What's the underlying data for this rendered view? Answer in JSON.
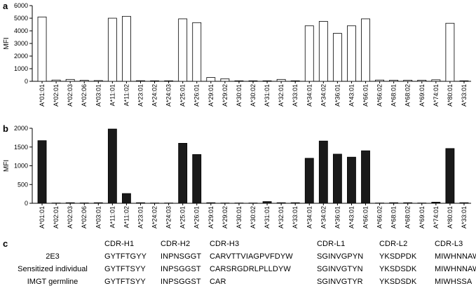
{
  "panels": {
    "a": {
      "label": "a"
    },
    "b": {
      "label": "b"
    },
    "c": {
      "label": "c"
    }
  },
  "chart_data": [
    {
      "type": "bar",
      "panel": "a",
      "ylabel": "MFI",
      "ylim": [
        0,
        6000
      ],
      "yticks": [
        0,
        1000,
        2000,
        3000,
        4000,
        5000,
        6000
      ],
      "fill": "#ffffff",
      "stroke": "#000000",
      "categories": [
        "A*01:01",
        "A*02:01",
        "A*02:03",
        "A*02:06",
        "A*03:01",
        "A*11:01",
        "A*11:02",
        "A*23:01",
        "A*24:02",
        "A*24:03",
        "A*25:01",
        "A*26:01",
        "A*29:01",
        "A*29:02",
        "A*30:01",
        "A*30:02",
        "A*31:01",
        "A*32:01",
        "A*33:01",
        "A*34:01",
        "A*34:02",
        "A*36:01",
        "A*43:01",
        "A*66:01",
        "A*66:02",
        "A*68:01",
        "A*68:02",
        "A*69:01",
        "A*74:01",
        "A*80:01",
        "A*33:01"
      ],
      "values": [
        5100,
        100,
        150,
        80,
        60,
        5000,
        5150,
        50,
        40,
        40,
        4950,
        4650,
        300,
        200,
        40,
        40,
        40,
        150,
        40,
        4400,
        4750,
        3800,
        4400,
        4950,
        100,
        90,
        90,
        90,
        120,
        4600,
        40
      ]
    },
    {
      "type": "bar",
      "panel": "b",
      "ylabel": "MFI",
      "ylim": [
        0,
        2000
      ],
      "yticks": [
        0,
        500,
        1000,
        1500,
        2000
      ],
      "fill": "#1a1a1a",
      "stroke": "#000000",
      "categories": [
        "A*01:01",
        "A*02:01",
        "A*02:03",
        "A*02:06",
        "A*03:01",
        "A*11:01",
        "A*11:02",
        "A*23:01",
        "A*24:02",
        "A*24:03",
        "A*25:01",
        "A*26:01",
        "A*29:01",
        "A*29:02",
        "A*30:01",
        "A*30:02",
        "A*31:01",
        "A*32:01",
        "A*33:01",
        "A*34:01",
        "A*34:02",
        "A*36:01",
        "A*43:01",
        "A*66:01",
        "A*66:02",
        "A*68:01",
        "A*68:02",
        "A*69:01",
        "A*74:01",
        "A*80:01",
        "A*33:01"
      ],
      "values": [
        1670,
        8,
        15,
        10,
        15,
        1980,
        260,
        15,
        8,
        8,
        1600,
        1300,
        15,
        8,
        8,
        8,
        45,
        15,
        15,
        1200,
        1660,
        1310,
        1230,
        1400,
        8,
        15,
        15,
        8,
        30,
        1460,
        15
      ]
    }
  ],
  "table": {
    "headers": [
      "CDR-H1",
      "CDR-H2",
      "CDR-H3",
      "CDR-L1",
      "CDR-L2",
      "CDR-L3"
    ],
    "rows": [
      {
        "label": "2E3",
        "cells": [
          "GYTFTGYY",
          "INPNSGGT",
          "CARVTTVIAGPVFDYW",
          "SGINVGPYN",
          "YKSDPDK",
          "MIWHNNAWV"
        ]
      },
      {
        "label": "Sensitized individual",
        "cells": [
          "GYTFTSYY",
          "INPSGGST",
          "CARSRGDRLPLLDYW",
          "SGINVGTYN",
          "YKSDSDK",
          "MIWHNNAWV"
        ]
      },
      {
        "label": "IMGT germline",
        "cells": [
          "GYTFTSYY",
          "INPSGGST",
          "CAR",
          "SGINVGTYR",
          "YKSDSDK",
          "MIWHSSA"
        ]
      }
    ]
  }
}
